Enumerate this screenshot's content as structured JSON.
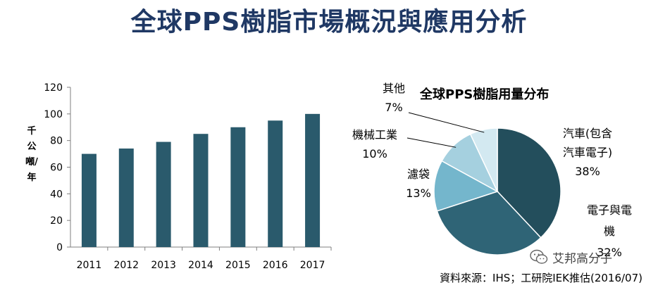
{
  "header": {
    "title": "全球PPS樹脂市場概況與應用分析"
  },
  "source": "資料來源：IHS；工研院IEK推估(2016/07)",
  "watermark": {
    "text": "艾邦高分子",
    "icon": "wechat-icon"
  },
  "colors": {
    "title": "#1f3864",
    "bar": "#2a5a6c",
    "axis": "#7f7f7f",
    "slice_auto": "#234e5c",
    "slice_electrical": "#2f6476",
    "slice_filter": "#74b6cc",
    "slice_machinery": "#a5d0df",
    "slice_other": "#d3e9f1"
  },
  "chart_data": [
    {
      "type": "bar",
      "title": "",
      "xlabel": "",
      "ylabel": "千公噸/年",
      "categories": [
        "2011",
        "2012",
        "2013",
        "2014",
        "2015",
        "2016",
        "2017"
      ],
      "values": [
        70,
        74,
        79,
        85,
        90,
        95,
        100
      ],
      "ylim": [
        0,
        120
      ],
      "yticks": [
        0,
        20,
        40,
        60,
        80,
        100,
        120
      ],
      "grid": false
    },
    {
      "type": "pie",
      "title": "全球PPS樹脂用量分布",
      "slices": [
        {
          "label": "汽車(包含汽車電子)",
          "label_lines": [
            "汽車(包含",
            "汽車電子)"
          ],
          "percent_text": "38%",
          "value": 38,
          "color": "#234e5c"
        },
        {
          "label": "電子與電機",
          "label_lines": [
            "電子與電",
            "機"
          ],
          "percent_text": "32%",
          "value": 32,
          "color": "#2f6476"
        },
        {
          "label": "濾袋",
          "label_lines": [
            "濾袋"
          ],
          "percent_text": "13%",
          "value": 13,
          "color": "#74b6cc"
        },
        {
          "label": "機械工業",
          "label_lines": [
            "機械工業"
          ],
          "percent_text": "10%",
          "value": 10,
          "color": "#a5d0df"
        },
        {
          "label": "其他",
          "label_lines": [
            "其他"
          ],
          "percent_text": "7%",
          "value": 7,
          "color": "#d3e9f1"
        }
      ]
    }
  ]
}
